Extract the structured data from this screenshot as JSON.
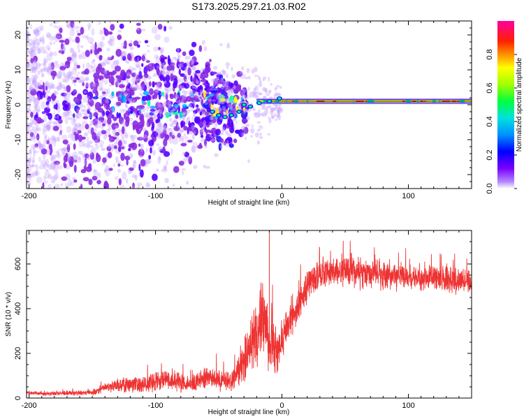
{
  "chart_data": [
    {
      "type": "heatmap",
      "title": "S173.2025.297.21.03.R02",
      "xlabel": "Height of straight line (km)",
      "ylabel": "Frequency (Hz)",
      "xlim": [
        -202,
        150
      ],
      "ylim": [
        -24,
        24
      ],
      "xticks": [
        -200,
        -100,
        0,
        100
      ],
      "xtick_labels": [
        "-200",
        "-100",
        "0",
        "100"
      ],
      "yticks": [
        -20,
        -10,
        0,
        10,
        20
      ],
      "ytick_labels": [
        "-20",
        "-10",
        "0",
        "10",
        "20"
      ],
      "colorbar": {
        "label": "Normalized spectral amplitude",
        "range": [
          0,
          1
        ],
        "ticks": [
          0.0,
          0.2,
          0.4,
          0.6,
          0.8
        ],
        "tick_labels": [
          "0.0",
          "0.2",
          "0.4",
          "0.6",
          "0.8"
        ],
        "colormap_stops": [
          "#ffffff",
          "#7b00ff",
          "#0000ff",
          "#00bfff",
          "#00ff80",
          "#ffff00",
          "#ff8000",
          "#ff0000",
          "#ff00a0"
        ]
      },
      "features": {
        "tone_frequency_hz": 1,
        "tone_start_km": -20,
        "scatter_region_km": [
          -202,
          -30
        ],
        "transition_km": -30
      }
    },
    {
      "type": "line",
      "xlabel": "Height of straight line (km)",
      "ylabel": "SNR (10 * v/v)",
      "xlim": [
        -202,
        150
      ],
      "ylim": [
        0,
        750
      ],
      "xticks": [
        -200,
        -100,
        0,
        100
      ],
      "xtick_labels": [
        "-200",
        "-100",
        "0",
        "100"
      ],
      "yticks": [
        0,
        200,
        400,
        600
      ],
      "ytick_labels": [
        "0",
        "200",
        "400",
        "600"
      ],
      "color": "#ee3333",
      "x": [
        -202,
        -190,
        -170,
        -150,
        -140,
        -130,
        -120,
        -110,
        -100,
        -90,
        -80,
        -70,
        -60,
        -50,
        -40,
        -35,
        -30,
        -25,
        -20,
        -15,
        -10,
        -5,
        0,
        5,
        10,
        15,
        20,
        25,
        30,
        40,
        50,
        60,
        70,
        80,
        90,
        100,
        110,
        120,
        130,
        140,
        150
      ],
      "values": [
        25,
        20,
        22,
        25,
        45,
        55,
        60,
        65,
        80,
        90,
        70,
        65,
        90,
        80,
        75,
        110,
        160,
        230,
        290,
        350,
        260,
        220,
        260,
        330,
        360,
        430,
        490,
        540,
        560,
        560,
        580,
        560,
        560,
        550,
        545,
        545,
        540,
        535,
        530,
        525,
        520
      ],
      "noise_amplitude": [
        10,
        10,
        12,
        15,
        25,
        35,
        40,
        45,
        55,
        55,
        50,
        45,
        55,
        55,
        55,
        80,
        110,
        160,
        200,
        200,
        170,
        140,
        110,
        90,
        90,
        90,
        90,
        90,
        90,
        85,
        85,
        80,
        80,
        75,
        75,
        70,
        70,
        70,
        70,
        70,
        65
      ]
    }
  ]
}
